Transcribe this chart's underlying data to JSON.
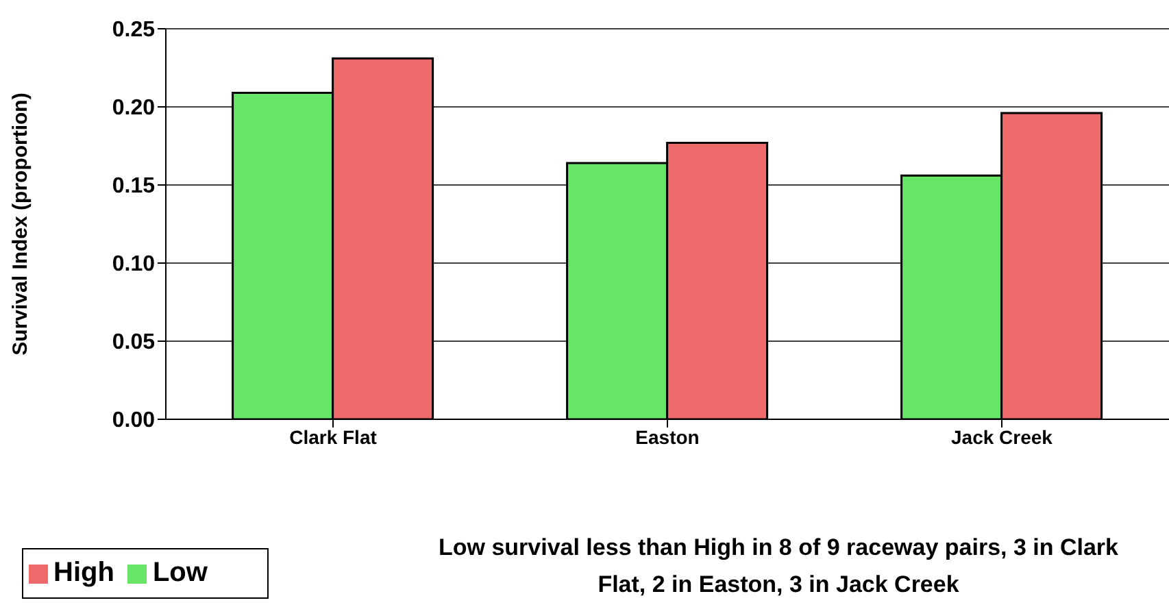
{
  "chart_data": {
    "type": "bar",
    "ylabel": "Survival Index (proportion)",
    "categories": [
      "Clark Flat",
      "Easton",
      "Jack Creek"
    ],
    "series": [
      {
        "name": "Low",
        "color": "#66e566",
        "values": [
          0.209,
          0.164,
          0.156
        ]
      },
      {
        "name": "High",
        "color": "#ee6a6a",
        "values": [
          0.231,
          0.177,
          0.196
        ]
      }
    ],
    "ylim": [
      0,
      0.25
    ],
    "yticks": [
      {
        "value": 0,
        "label": "0.00"
      },
      {
        "value": 0.05,
        "label": "0.05"
      },
      {
        "value": 0.1,
        "label": "0.10"
      },
      {
        "value": 0.15,
        "label": "0.15"
      },
      {
        "value": 0.2,
        "label": "0.20"
      },
      {
        "value": 0.25,
        "label": "0.25"
      }
    ],
    "grid": "y",
    "legend": "bottom left",
    "annotations": [
      "Low survival less than High in 8 of 9 raceway pairs, 3 in Clark Flat, 2 in Easton, 3 in Jack Creek"
    ]
  }
}
